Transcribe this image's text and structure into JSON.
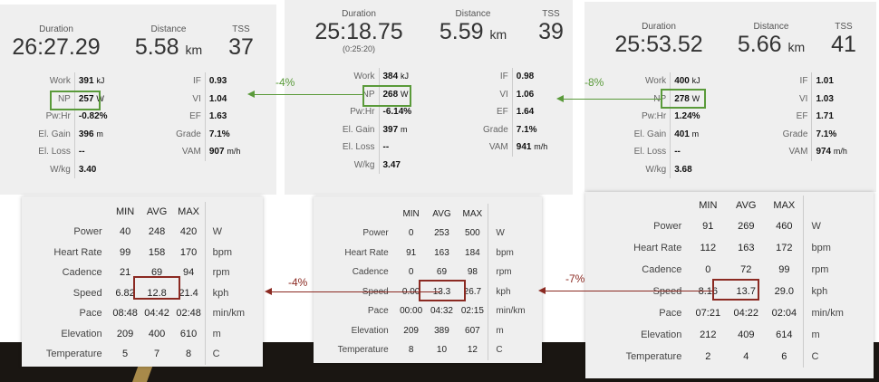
{
  "colors": {
    "green": "#5a9a3a",
    "red": "#8b2a22",
    "panel": "#efefef"
  },
  "ride1": {
    "duration_label": "Duration",
    "duration": "26:27.29",
    "distance_label": "Distance",
    "distance": "5.58",
    "distance_unit": "km",
    "tss_label": "TSS",
    "tss": "37",
    "work_label": "Work",
    "work": "391",
    "work_unit": "kJ",
    "np_label": "NP",
    "np": "257",
    "np_unit": "W",
    "pwhr_label": "Pw:Hr",
    "pwhr": "-0.82%",
    "elgain_label": "El. Gain",
    "elgain": "396",
    "elgain_unit": "m",
    "elloss_label": "El. Loss",
    "elloss": "--",
    "wkg_label": "W/kg",
    "wkg": "3.40",
    "if_label": "IF",
    "if": "0.93",
    "vi_label": "VI",
    "vi": "1.04",
    "ef_label": "EF",
    "ef": "1.63",
    "grade_label": "Grade",
    "grade": "7.1%",
    "vam_label": "VAM",
    "vam": "907",
    "vam_unit": "m/h"
  },
  "ride2": {
    "duration_label": "Duration",
    "duration": "25:18.75",
    "duration_sub": "(0:25:20)",
    "distance_label": "Distance",
    "distance": "5.59",
    "distance_unit": "km",
    "tss_label": "TSS",
    "tss": "39",
    "work_label": "Work",
    "work": "384",
    "work_unit": "kJ",
    "np_label": "NP",
    "np": "268",
    "np_unit": "W",
    "pwhr_label": "Pw:Hr",
    "pwhr": "-6.14%",
    "elgain_label": "El. Gain",
    "elgain": "397",
    "elgain_unit": "m",
    "elloss_label": "El. Loss",
    "elloss": "--",
    "wkg_label": "W/kg",
    "wkg": "3.47",
    "if_label": "IF",
    "if": "0.98",
    "vi_label": "VI",
    "vi": "1.06",
    "ef_label": "EF",
    "ef": "1.64",
    "grade_label": "Grade",
    "grade": "7.1%",
    "vam_label": "VAM",
    "vam": "941",
    "vam_unit": "m/h"
  },
  "ride3": {
    "duration_label": "Duration",
    "duration": "25:53.52",
    "distance_label": "Distance",
    "distance": "5.66",
    "distance_unit": "km",
    "tss_label": "TSS",
    "tss": "41",
    "work_label": "Work",
    "work": "400",
    "work_unit": "kJ",
    "np_label": "NP",
    "np": "278",
    "np_unit": "W",
    "pwhr_label": "Pw:Hr",
    "pwhr": "1.24%",
    "elgain_label": "El. Gain",
    "elgain": "401",
    "elgain_unit": "m",
    "elloss_label": "El. Loss",
    "elloss": "--",
    "wkg_label": "W/kg",
    "wkg": "3.68",
    "if_label": "IF",
    "if": "1.01",
    "vi_label": "VI",
    "vi": "1.03",
    "ef_label": "EF",
    "ef": "1.71",
    "grade_label": "Grade",
    "grade": "7.1%",
    "vam_label": "VAM",
    "vam": "974",
    "vam_unit": "m/h"
  },
  "stats_headers": {
    "min": "MIN",
    "avg": "AVG",
    "max": "MAX"
  },
  "stats1": [
    {
      "label": "Power",
      "min": "40",
      "avg": "248",
      "max": "420",
      "unit": "W"
    },
    {
      "label": "Heart Rate",
      "min": "99",
      "avg": "158",
      "max": "170",
      "unit": "bpm"
    },
    {
      "label": "Cadence",
      "min": "21",
      "avg": "69",
      "max": "94",
      "unit": "rpm"
    },
    {
      "label": "Speed",
      "min": "6.82",
      "avg": "12.8",
      "max": "21.4",
      "unit": "kph"
    },
    {
      "label": "Pace",
      "min": "08:48",
      "avg": "04:42",
      "max": "02:48",
      "unit": "min/km"
    },
    {
      "label": "Elevation",
      "min": "209",
      "avg": "400",
      "max": "610",
      "unit": "m"
    },
    {
      "label": "Temperature",
      "min": "5",
      "avg": "7",
      "max": "8",
      "unit": "C"
    }
  ],
  "stats2": [
    {
      "label": "Power",
      "min": "0",
      "avg": "253",
      "max": "500",
      "unit": "W"
    },
    {
      "label": "Heart Rate",
      "min": "91",
      "avg": "163",
      "max": "184",
      "unit": "bpm"
    },
    {
      "label": "Cadence",
      "min": "0",
      "avg": "69",
      "max": "98",
      "unit": "rpm"
    },
    {
      "label": "Speed",
      "min": "0.00",
      "avg": "13.3",
      "max": "26.7",
      "unit": "kph"
    },
    {
      "label": "Pace",
      "min": "00:00",
      "avg": "04:32",
      "max": "02:15",
      "unit": "min/km"
    },
    {
      "label": "Elevation",
      "min": "209",
      "avg": "389",
      "max": "607",
      "unit": "m"
    },
    {
      "label": "Temperature",
      "min": "8",
      "avg": "10",
      "max": "12",
      "unit": "C"
    }
  ],
  "stats3": [
    {
      "label": "Power",
      "min": "91",
      "avg": "269",
      "max": "460",
      "unit": "W"
    },
    {
      "label": "Heart Rate",
      "min": "112",
      "avg": "163",
      "max": "172",
      "unit": "bpm"
    },
    {
      "label": "Cadence",
      "min": "0",
      "avg": "72",
      "max": "99",
      "unit": "rpm"
    },
    {
      "label": "Speed",
      "min": "8.16",
      "avg": "13.7",
      "max": "29.0",
      "unit": "kph"
    },
    {
      "label": "Pace",
      "min": "07:21",
      "avg": "04:22",
      "max": "02:04",
      "unit": "min/km"
    },
    {
      "label": "Elevation",
      "min": "212",
      "avg": "409",
      "max": "614",
      "unit": "m"
    },
    {
      "label": "Temperature",
      "min": "2",
      "avg": "4",
      "max": "6",
      "unit": "C"
    }
  ],
  "annotations": {
    "np_diff_1": "-4%",
    "np_diff_2": "-8%",
    "speed_diff_1": "-4%",
    "speed_diff_2": "-7%"
  }
}
